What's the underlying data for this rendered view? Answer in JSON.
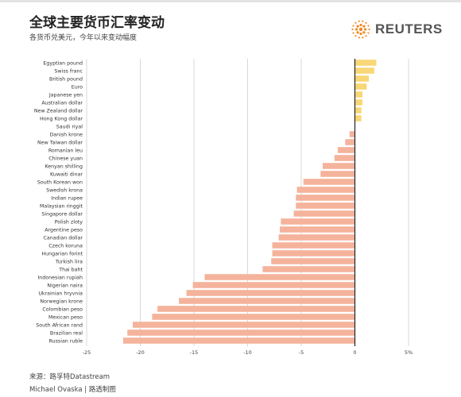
{
  "header": {
    "title": "全球主要货币汇率变动",
    "subtitle": "各货币兑美元，今年以来变动幅度",
    "logo_text": "REUTERS"
  },
  "footer": {
    "source": "来源：路孚特Datastream",
    "credit": "Michael Ovaska | 路透制图"
  },
  "colors": {
    "positive": "#f8d777",
    "negative": "#f5b39c",
    "grid": "#d8d8d8",
    "zero_line": "#222222",
    "logo_orange": "#f08a24"
  },
  "chart_data": {
    "type": "bar",
    "orientation": "horizontal",
    "categories": [
      "Egyptian pound",
      "Swiss franc",
      "British pound",
      "Euro",
      "Japanese yen",
      "Australian dollar",
      "New Zealand dollar",
      "Hong Kong dollar",
      "Saudi riyal",
      "Danish krone",
      "New Taiwan dollar",
      "Romanian leu",
      "Chinese yuan",
      "Kenyan shilling",
      "Kuwaiti dinar",
      "South Korean won",
      "Swedish krona",
      "Indian rupee",
      "Malaysian ringgit",
      "Singapore dollar",
      "Polish zloty",
      "Argentine peso",
      "Canadian dollar",
      "Czech koruna",
      "Hungarian forint",
      "Turkish lira",
      "Thai baht",
      "Indonesian rupiah",
      "Nigerian naira",
      "Ukrainian hryvnia",
      "Norwegian krone",
      "Colombian peso",
      "Mexican peso",
      "South African rand",
      "Brazilian real",
      "Russian ruble"
    ],
    "values": [
      2.0,
      1.8,
      1.3,
      1.1,
      0.7,
      0.7,
      0.6,
      0.6,
      0.0,
      -0.5,
      -0.9,
      -1.6,
      -1.9,
      -3.0,
      -3.2,
      -4.8,
      -5.4,
      -5.5,
      -5.5,
      -5.7,
      -6.9,
      -7.0,
      -7.1,
      -7.7,
      -7.7,
      -7.8,
      -8.6,
      -14.0,
      -15.1,
      -15.7,
      -16.4,
      -18.4,
      -18.9,
      -20.7,
      -21.2,
      -21.6
    ],
    "xlim": [
      -25,
      5
    ],
    "x_ticks": [
      -25,
      -20,
      -15,
      -10,
      -5,
      0,
      5
    ],
    "x_tick_labels": [
      "-25",
      "-20",
      "-15",
      "-10",
      "-5",
      "0",
      "5%"
    ],
    "grid": true
  }
}
